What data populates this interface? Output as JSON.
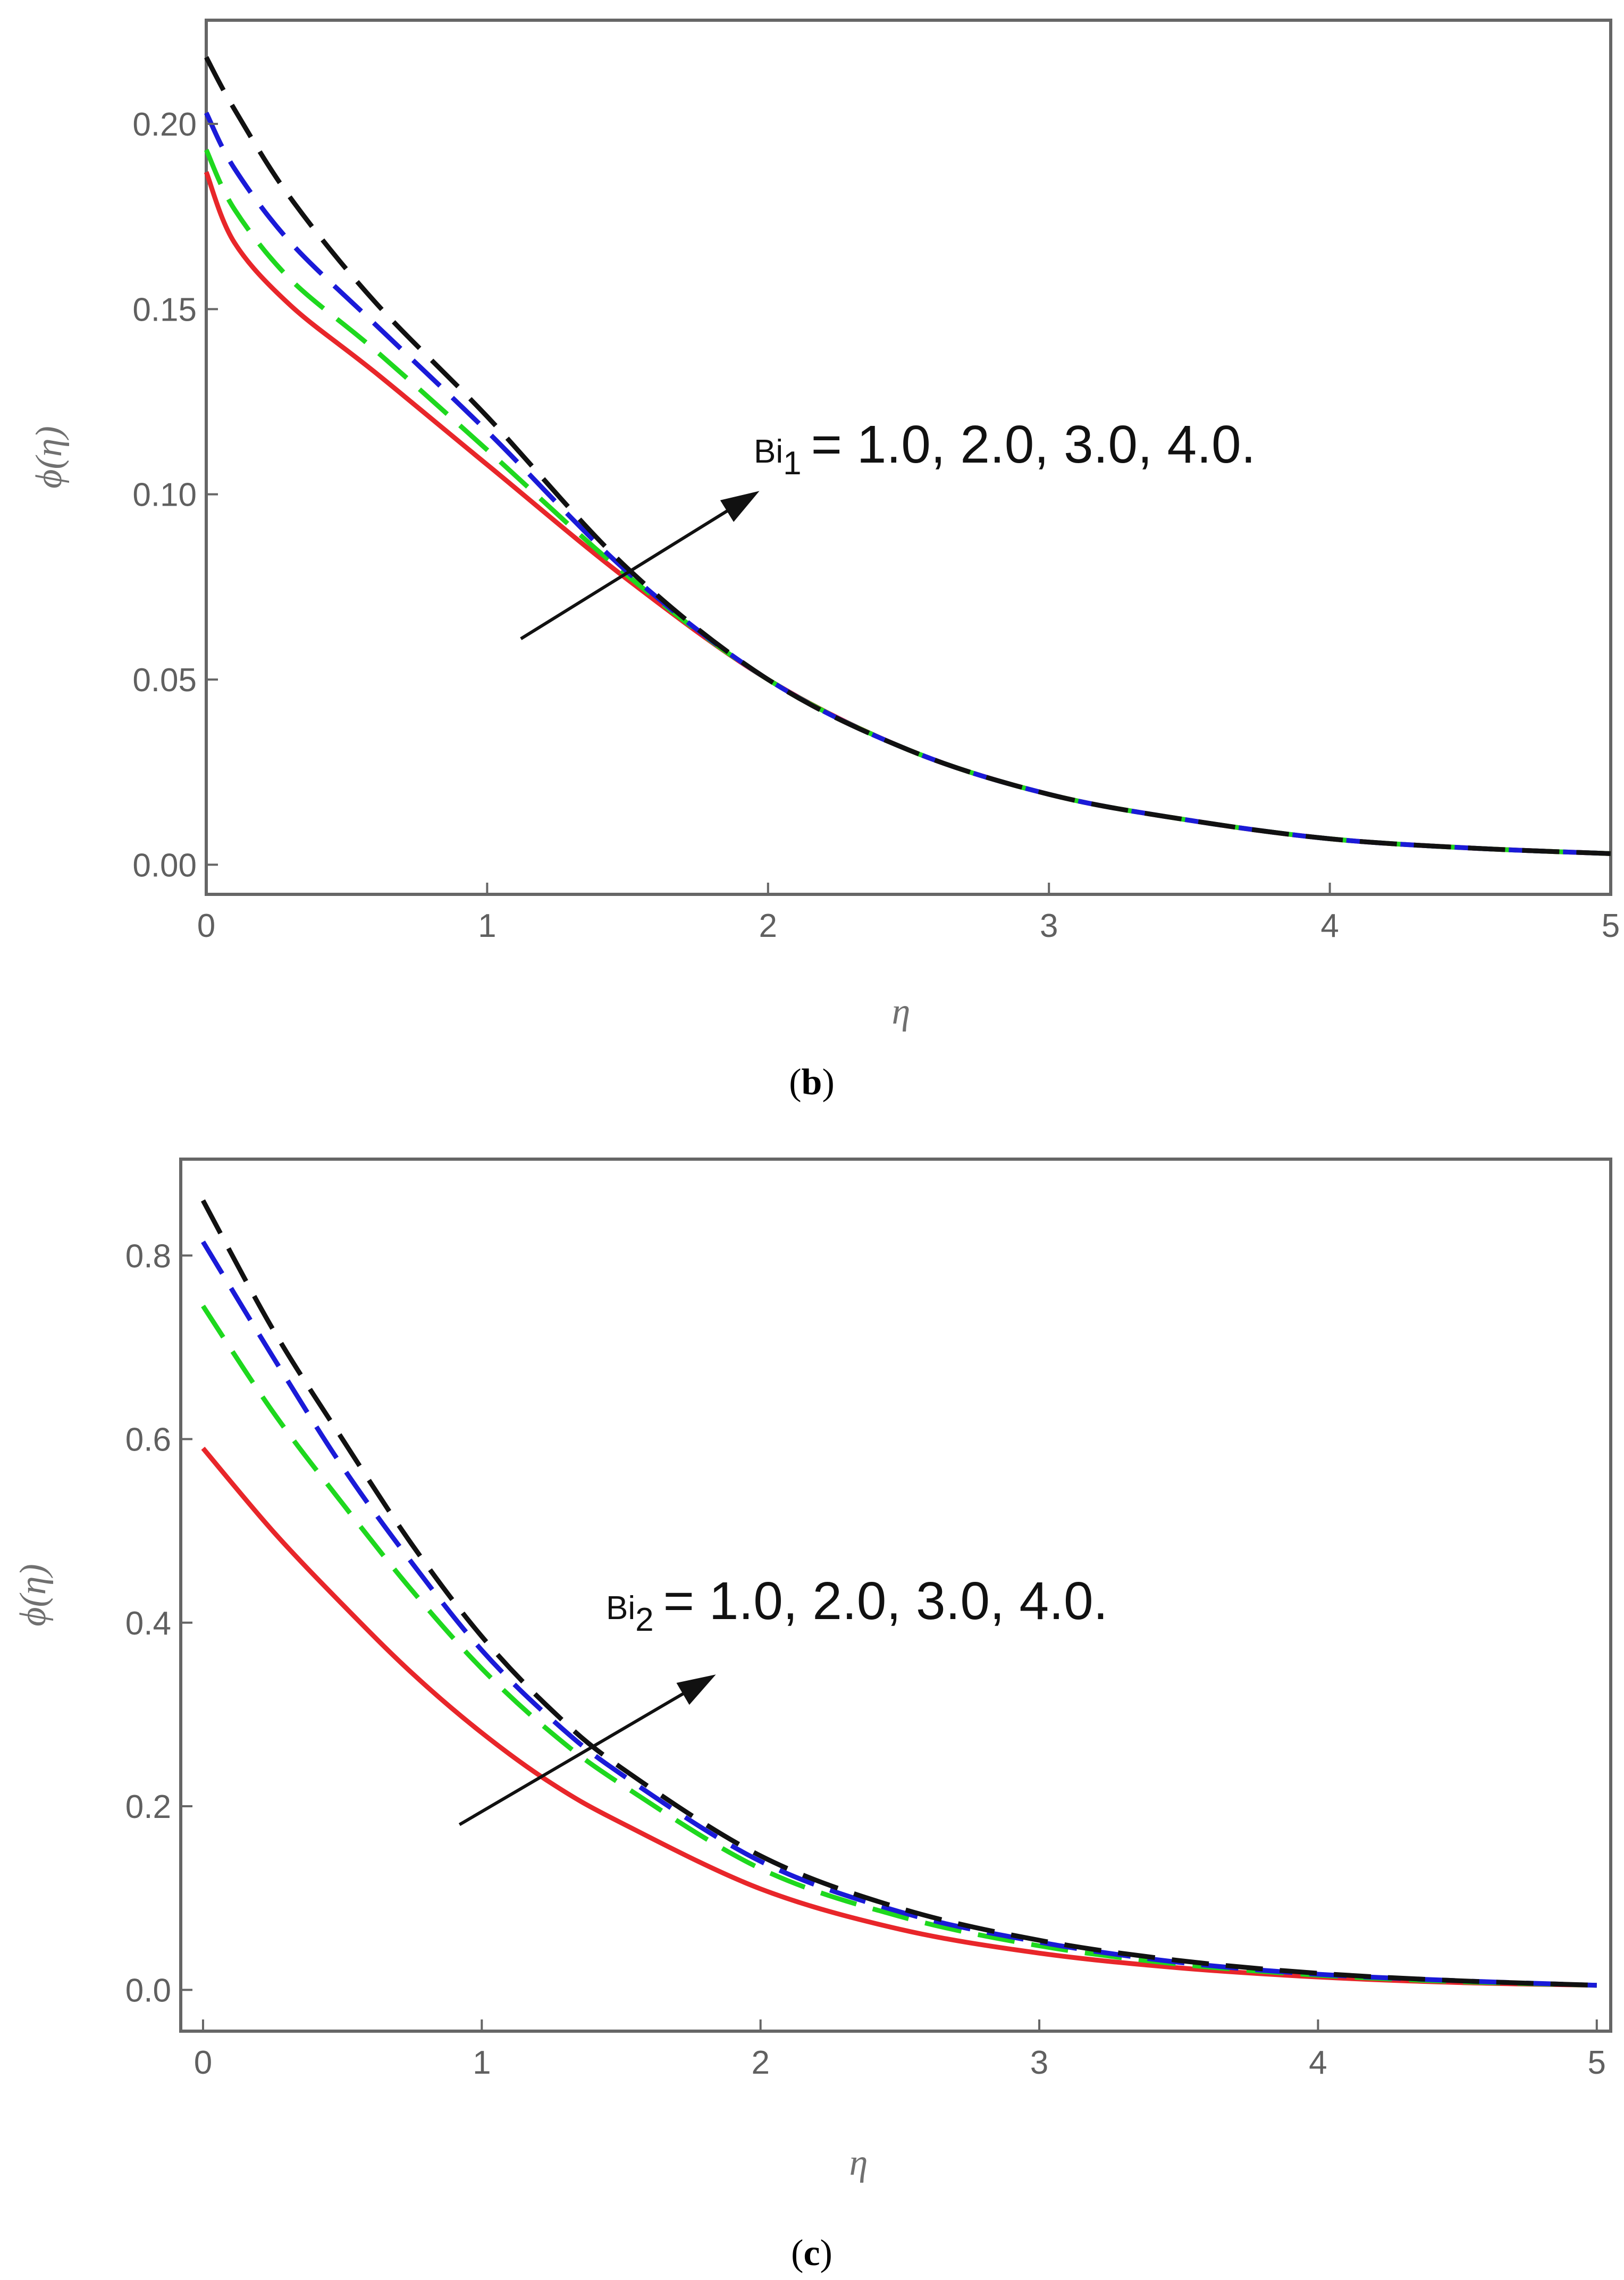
{
  "chart_data": [
    {
      "panel": "b",
      "type": "line",
      "caption_open": "(",
      "caption_letter": "b",
      "caption_close": ")",
      "xlabel": "η",
      "ylabel": "ϕ(η)",
      "xlim": [
        0,
        5
      ],
      "ylim": [
        -0.008,
        0.228
      ],
      "xticks": [
        0,
        1,
        2,
        3,
        4,
        5
      ],
      "xtick_labels": [
        "0",
        "1",
        "2",
        "3",
        "4",
        "5"
      ],
      "yticks": [
        0.0,
        0.05,
        0.1,
        0.15,
        0.2
      ],
      "ytick_labels": [
        "0.00",
        "0.05",
        "0.10",
        "0.15",
        "0.20"
      ],
      "annotation": {
        "symbol": "Bi",
        "subscript": "1",
        "text": "= 1.0, 2.0, 3.0, 4.0.",
        "arrow_from": [
          1.12,
          0.061
        ],
        "arrow_to": [
          1.95,
          0.1
        ]
      },
      "series": [
        {
          "name": "Bi1 = 1.0",
          "color": "#e8262a",
          "style": "solid",
          "x": [
            0,
            0.1,
            0.3,
            0.6,
            1.0,
            1.5,
            2.0,
            2.5,
            3.0,
            3.5,
            4.0,
            4.5,
            5.0
          ],
          "y": [
            0.187,
            0.168,
            0.151,
            0.133,
            0.108,
            0.077,
            0.05,
            0.031,
            0.019,
            0.012,
            0.007,
            0.0045,
            0.003
          ]
        },
        {
          "name": "Bi1 = 2.0",
          "color": "#1ed81e",
          "style": "dashed",
          "x": [
            0,
            0.1,
            0.3,
            0.6,
            1.0,
            1.5,
            2.0,
            2.5,
            3.0,
            3.5,
            4.0,
            4.5,
            5.0
          ],
          "y": [
            0.193,
            0.177,
            0.158,
            0.139,
            0.112,
            0.078,
            0.05,
            0.031,
            0.019,
            0.012,
            0.007,
            0.0045,
            0.003
          ]
        },
        {
          "name": "Bi1 = 3.0",
          "color": "#1a1ad8",
          "style": "dashed",
          "x": [
            0,
            0.1,
            0.3,
            0.6,
            1.0,
            1.5,
            2.0,
            2.5,
            3.0,
            3.5,
            4.0,
            4.5,
            5.0
          ],
          "y": [
            0.203,
            0.188,
            0.168,
            0.146,
            0.117,
            0.079,
            0.05,
            0.031,
            0.019,
            0.012,
            0.007,
            0.0045,
            0.003
          ]
        },
        {
          "name": "Bi1 = 4.0",
          "color": "#111111",
          "style": "dashed",
          "x": [
            0,
            0.1,
            0.3,
            0.6,
            1.0,
            1.5,
            2.0,
            2.5,
            3.0,
            3.5,
            4.0,
            4.5,
            5.0
          ],
          "y": [
            0.218,
            0.204,
            0.18,
            0.152,
            0.121,
            0.08,
            0.05,
            0.031,
            0.019,
            0.012,
            0.007,
            0.0045,
            0.003
          ]
        }
      ]
    },
    {
      "panel": "c",
      "type": "line",
      "caption_open": "(",
      "caption_letter": "c",
      "caption_close": ")",
      "xlabel": "η",
      "ylabel": "ϕ(η)",
      "xlim": [
        -0.08,
        5.05
      ],
      "ylim": [
        -0.045,
        0.905
      ],
      "xticks": [
        0,
        1,
        2,
        3,
        4,
        5
      ],
      "xtick_labels": [
        "0",
        "1",
        "2",
        "3",
        "4",
        "5"
      ],
      "yticks": [
        0.0,
        0.2,
        0.4,
        0.6,
        0.8
      ],
      "ytick_labels": [
        "0.0",
        "0.2",
        "0.4",
        "0.6",
        "0.8"
      ],
      "annotation": {
        "symbol": "Bi",
        "subscript": "2",
        "text": "= 1.0, 2.0, 3.0, 4.0.",
        "arrow_from": [
          0.92,
          0.18
        ],
        "arrow_to": [
          1.82,
          0.34
        ]
      },
      "series": [
        {
          "name": "Bi2 = 1.0",
          "color": "#e8262a",
          "style": "solid",
          "x": [
            0,
            0.25,
            0.5,
            0.75,
            1.0,
            1.25,
            1.5,
            2.0,
            2.5,
            3.0,
            3.5,
            4.0,
            4.5,
            5.0
          ],
          "y": [
            0.59,
            0.5,
            0.42,
            0.345,
            0.28,
            0.225,
            0.182,
            0.11,
            0.066,
            0.04,
            0.024,
            0.014,
            0.008,
            0.005
          ]
        },
        {
          "name": "Bi2 = 2.0",
          "color": "#1ed81e",
          "style": "dashed",
          "x": [
            0,
            0.25,
            0.5,
            0.75,
            1.0,
            1.25,
            1.5,
            2.0,
            2.5,
            3.0,
            3.5,
            4.0,
            4.5,
            5.0
          ],
          "y": [
            0.745,
            0.63,
            0.53,
            0.435,
            0.35,
            0.28,
            0.224,
            0.132,
            0.08,
            0.048,
            0.028,
            0.016,
            0.009,
            0.005
          ]
        },
        {
          "name": "Bi2 = 3.0",
          "color": "#1a1ad8",
          "style": "dashed",
          "x": [
            0,
            0.25,
            0.5,
            0.75,
            1.0,
            1.25,
            1.5,
            2.0,
            2.5,
            3.0,
            3.5,
            4.0,
            4.5,
            5.0
          ],
          "y": [
            0.815,
            0.69,
            0.57,
            0.465,
            0.37,
            0.295,
            0.235,
            0.14,
            0.085,
            0.052,
            0.03,
            0.017,
            0.01,
            0.005
          ]
        },
        {
          "name": "Bi2 = 4.0",
          "color": "#111111",
          "style": "dashed",
          "x": [
            0,
            0.25,
            0.5,
            0.75,
            1.0,
            1.25,
            1.5,
            2.0,
            2.5,
            3.0,
            3.5,
            4.0,
            4.5,
            5.0
          ],
          "y": [
            0.86,
            0.72,
            0.6,
            0.485,
            0.385,
            0.305,
            0.242,
            0.146,
            0.089,
            0.054,
            0.032,
            0.018,
            0.01,
            0.005
          ]
        }
      ]
    }
  ]
}
